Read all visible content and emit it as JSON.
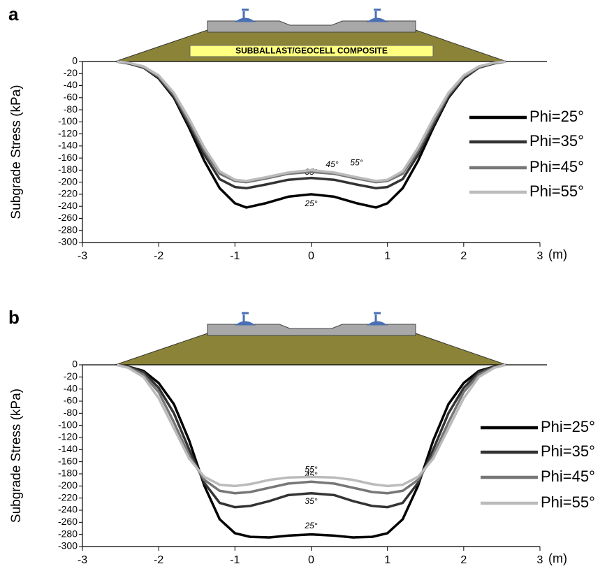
{
  "chart_data": [
    {
      "type": "line",
      "title": "a",
      "ylabel": "Subgrade Stress (kPa)",
      "xlabel": "(m)",
      "annotation": "SUBBALLAST/GEOCELL COMPOSITE",
      "x": [
        -2.55,
        -2.4,
        -2.2,
        -2,
        -1.8,
        -1.6,
        -1.4,
        -1.2,
        -1.0,
        -0.85,
        -0.6,
        -0.3,
        0,
        0.3,
        0.6,
        0.85,
        1.0,
        1.2,
        1.4,
        1.6,
        1.8,
        2,
        2.2,
        2.4,
        2.55
      ],
      "xlim": [
        -3,
        3
      ],
      "xticks": [
        -3,
        -2,
        -1,
        0,
        1,
        2,
        3
      ],
      "ylim": [
        -300,
        0
      ],
      "yticks": [
        0,
        -20,
        -40,
        -60,
        -80,
        -100,
        -120,
        -140,
        -160,
        -180,
        -200,
        -220,
        -240,
        -260,
        -280,
        -300
      ],
      "legend": "right",
      "series": [
        {
          "name": "Phi=25°",
          "label": "25°",
          "color": "#000000",
          "values": [
            0,
            -3,
            -10,
            -28,
            -60,
            -110,
            -165,
            -210,
            -235,
            -242,
            -235,
            -224,
            -220,
            -224,
            -235,
            -242,
            -235,
            -210,
            -165,
            -110,
            -60,
            -28,
            -10,
            -3,
            0
          ]
        },
        {
          "name": "Phi=35°",
          "label": "35°",
          "color": "#333333",
          "values": [
            0,
            -3,
            -10,
            -27,
            -58,
            -105,
            -155,
            -195,
            -208,
            -210,
            -204,
            -196,
            -193,
            -196,
            -204,
            -210,
            -208,
            -195,
            -155,
            -105,
            -58,
            -27,
            -10,
            -3,
            0
          ]
        },
        {
          "name": "Phi=45°",
          "label": "45°",
          "color": "#777777",
          "values": [
            0,
            -2,
            -9,
            -25,
            -55,
            -100,
            -148,
            -186,
            -198,
            -200,
            -194,
            -186,
            -183,
            -186,
            -194,
            -200,
            -198,
            -186,
            -148,
            -100,
            -55,
            -25,
            -9,
            -2,
            0
          ]
        },
        {
          "name": "Phi=55°",
          "label": "55°",
          "color": "#bbbbbb",
          "values": [
            0,
            -2,
            -8,
            -23,
            -52,
            -95,
            -143,
            -182,
            -196,
            -198,
            -192,
            -184,
            -180,
            -184,
            -192,
            -198,
            -196,
            -182,
            -143,
            -95,
            -52,
            -23,
            -8,
            -2,
            0
          ]
        }
      ]
    },
    {
      "type": "line",
      "title": "b",
      "ylabel": "Subgrade Stress (kPa)",
      "xlabel": "(m)",
      "x": [
        -2.55,
        -2.4,
        -2.2,
        -2,
        -1.8,
        -1.6,
        -1.4,
        -1.2,
        -1.0,
        -0.8,
        -0.55,
        -0.3,
        0,
        0.3,
        0.55,
        0.8,
        1.0,
        1.2,
        1.4,
        1.6,
        1.8,
        2,
        2.2,
        2.4,
        2.55
      ],
      "xlim": [
        -3,
        3
      ],
      "xticks": [
        -3,
        -2,
        -1,
        0,
        1,
        2,
        3
      ],
      "ylim": [
        -300,
        0
      ],
      "yticks": [
        0,
        -20,
        -40,
        -60,
        -80,
        -100,
        -120,
        -140,
        -160,
        -180,
        -200,
        -220,
        -240,
        -260,
        -280,
        -300
      ],
      "legend": "right",
      "series": [
        {
          "name": "Phi=25°",
          "label": "25°",
          "color": "#000000",
          "values": [
            0,
            -3,
            -10,
            -30,
            -65,
            -125,
            -200,
            -255,
            -278,
            -284,
            -285,
            -282,
            -280,
            -282,
            -285,
            -284,
            -278,
            -255,
            -200,
            -125,
            -65,
            -30,
            -10,
            -3,
            0
          ]
        },
        {
          "name": "Phi=35°",
          "label": "35°",
          "color": "#333333",
          "values": [
            0,
            -3,
            -12,
            -38,
            -80,
            -140,
            -195,
            -228,
            -235,
            -233,
            -225,
            -215,
            -212,
            -215,
            -225,
            -233,
            -235,
            -228,
            -195,
            -140,
            -80,
            -38,
            -12,
            -3,
            0
          ]
        },
        {
          "name": "Phi=45°",
          "label": "45°",
          "color": "#777777",
          "values": [
            0,
            -4,
            -16,
            -45,
            -95,
            -150,
            -190,
            -208,
            -212,
            -210,
            -203,
            -196,
            -193,
            -196,
            -203,
            -210,
            -212,
            -208,
            -190,
            -150,
            -95,
            -45,
            -16,
            -4,
            0
          ]
        },
        {
          "name": "Phi=55°",
          "label": "55°",
          "color": "#bbbbbb",
          "values": [
            0,
            -5,
            -20,
            -55,
            -105,
            -155,
            -185,
            -198,
            -200,
            -197,
            -190,
            -186,
            -185,
            -186,
            -190,
            -197,
            -200,
            -198,
            -185,
            -155,
            -105,
            -55,
            -20,
            -5,
            0
          ]
        }
      ]
    }
  ]
}
